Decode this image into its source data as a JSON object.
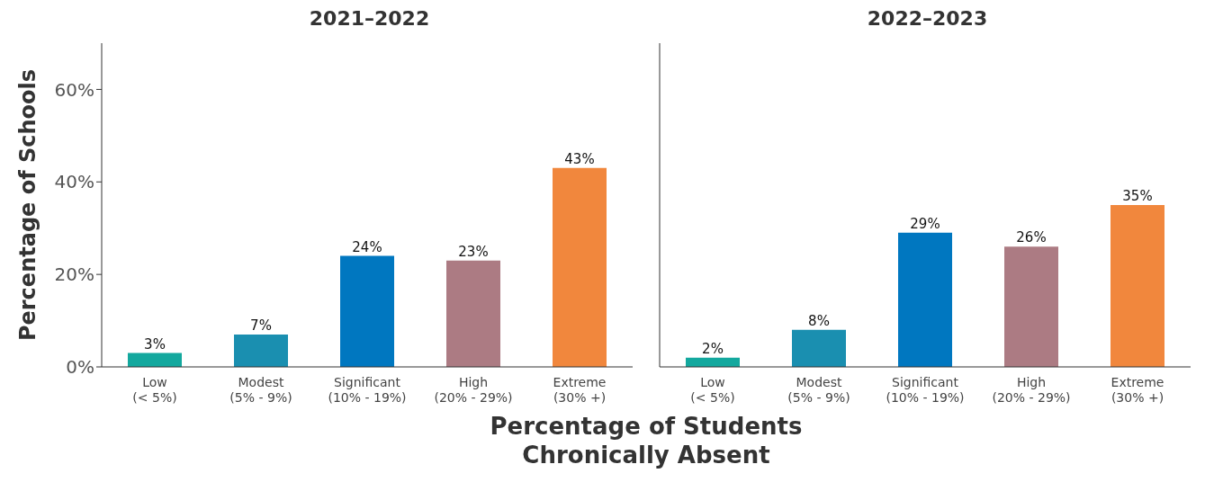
{
  "chart_data": [
    {
      "type": "bar",
      "title": "2021–2022",
      "ylabel": "Percentage of Schools",
      "xlabel": "Percentage of Students\nChronically Absent",
      "categories": [
        "Low\n(< 5%)",
        "Modest\n(5% - 9%)",
        "Significant\n(10% - 19%)",
        "High\n(20% - 29%)",
        "Extreme\n(30% +)"
      ],
      "values": [
        3,
        7,
        24,
        23,
        43
      ],
      "value_labels": [
        "3%",
        "7%",
        "24%",
        "23%",
        "43%"
      ],
      "colors": [
        "#13a89e",
        "#1a8fb0",
        "#0077c0",
        "#ac7b83",
        "#f1873d"
      ],
      "ylim": [
        0,
        70
      ],
      "yticks": [
        {
          "value": 0,
          "label": "0%"
        },
        {
          "value": 20,
          "label": "20%"
        },
        {
          "value": 40,
          "label": "40%"
        },
        {
          "value": 60,
          "label": "60%"
        }
      ],
      "grid": false
    },
    {
      "type": "bar",
      "title": "2022–2023",
      "categories": [
        "Low\n(< 5%)",
        "Modest\n(5% - 9%)",
        "Significant\n(10% - 19%)",
        "High\n(20% - 29%)",
        "Extreme\n(30% +)"
      ],
      "values": [
        2,
        8,
        29,
        26,
        35
      ],
      "value_labels": [
        "2%",
        "8%",
        "29%",
        "26%",
        "35%"
      ],
      "colors": [
        "#13a89e",
        "#1a8fb0",
        "#0077c0",
        "#ac7b83",
        "#f1873d"
      ],
      "ylim": [
        0,
        70
      ],
      "grid": false,
      "tick_labels": "x"
    }
  ]
}
